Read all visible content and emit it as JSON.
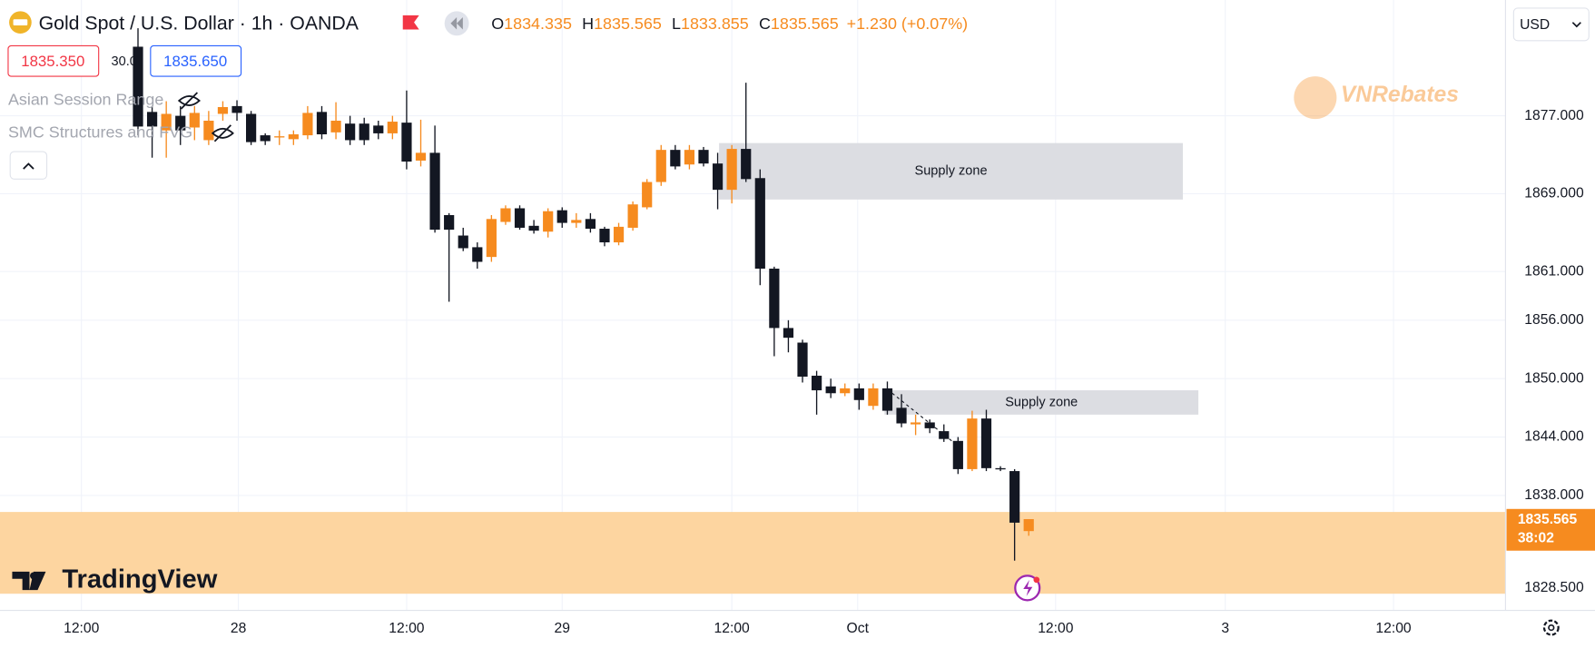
{
  "chart_data": {
    "type": "candlestick",
    "title": "Gold Spot / U.S. Dollar · 1h · OANDA",
    "legend_ohlc": [
      {
        "label": "O",
        "value": 1834.335
      },
      {
        "label": "H",
        "value": 1835.565
      },
      {
        "label": "L",
        "value": 1833.855
      },
      {
        "label": "C",
        "value": 1835.565
      }
    ],
    "change": "+1.230 (+0.07%)",
    "bid": "1835.350",
    "spread": "30.0",
    "ask": "1835.650",
    "indicators": [
      "Asian Session Range",
      "SMC Structures and FVG"
    ],
    "currency": "USD",
    "logo": "TradingView",
    "watermark": "VNRebates",
    "up_color": "#f68b1f",
    "down_color": "#131722",
    "grid": true,
    "x": [
      4,
      5,
      6,
      7,
      8,
      9,
      10,
      11,
      12,
      13,
      14,
      15,
      16,
      17,
      18,
      19,
      20,
      21,
      22,
      23,
      24,
      25,
      26,
      27,
      28,
      29,
      30,
      31,
      32,
      33,
      34,
      35,
      36,
      37,
      38,
      39,
      40,
      41,
      42,
      43,
      44,
      45,
      46,
      47,
      48,
      49,
      50,
      51,
      52,
      53,
      54,
      55,
      56,
      57,
      58,
      59,
      60,
      61,
      62,
      63,
      64,
      65,
      66,
      67
    ],
    "open": [
      1884.1,
      1877.4,
      1875.5,
      1877,
      1875.8,
      1874.5,
      1877.2,
      1878,
      1877.2,
      1875,
      1874.8,
      1874.6,
      1875,
      1877.4,
      1875.3,
      1876.2,
      1876.2,
      1876,
      1875.2,
      1876.3,
      1872.4,
      1873.2,
      1866.8,
      1864.7,
      1863.5,
      1862.5,
      1866.1,
      1867.5,
      1865.7,
      1865.1,
      1867.3,
      1866,
      1866.4,
      1865.4,
      1864,
      1865.5,
      1867.6,
      1870.2,
      1873.5,
      1872,
      1873.5,
      1872.1,
      1869.4,
      1873.6,
      1870.6,
      1861.3,
      1855.2,
      1853.7,
      1850.3,
      1849.2,
      1848.5,
      1849,
      1847.2,
      1849,
      1847,
      1845.3,
      1845.5,
      1844.6,
      1843.6,
      1840.7,
      1845.9,
      1840.8,
      1840.5,
      1834.335
    ],
    "high": [
      1886,
      1878,
      1878.5,
      1878,
      1878,
      1877.5,
      1878.5,
      1878.6,
      1877.5,
      1875.2,
      1875.5,
      1875.5,
      1878,
      1878,
      1878.4,
      1877,
      1876.8,
      1876.5,
      1877,
      1879.6,
      1876.6,
      1876,
      1867,
      1865.5,
      1864,
      1866.8,
      1867.8,
      1867.8,
      1866.3,
      1867.5,
      1867.6,
      1867,
      1867,
      1865.6,
      1866,
      1868.2,
      1870.5,
      1874,
      1874,
      1874,
      1873.8,
      1873.2,
      1874,
      1880.4,
      1871.5,
      1861.5,
      1856,
      1854,
      1850.8,
      1850,
      1849.5,
      1849.5,
      1849.5,
      1849.7,
      1848.4,
      1846.3,
      1845.8,
      1845.3,
      1844,
      1846.7,
      1846.8,
      1841,
      1840.7,
      1835.565
    ],
    "low": [
      1875,
      1872.7,
      1872.7,
      1874,
      1874.5,
      1874,
      1876.5,
      1876.5,
      1874,
      1874,
      1874,
      1874,
      1874.6,
      1874.6,
      1874.6,
      1874,
      1874,
      1874.6,
      1874.6,
      1871.5,
      1871.8,
      1865,
      1857.9,
      1863.1,
      1861.3,
      1862,
      1865.8,
      1865.3,
      1864.9,
      1864.5,
      1865.5,
      1865.5,
      1865,
      1863.6,
      1863.7,
      1865.2,
      1867.4,
      1869.8,
      1871.5,
      1871.5,
      1871.8,
      1867.4,
      1868,
      1870.2,
      1859.6,
      1852.3,
      1852.7,
      1849.6,
      1846.3,
      1848,
      1848.2,
      1846.8,
      1846.8,
      1846.3,
      1845,
      1844.2,
      1844.4,
      1843.5,
      1840.2,
      1840.5,
      1840.5,
      1840.5,
      1831.3,
      1833.855
    ],
    "close": [
      1875.9,
      1875.9,
      1877.2,
      1875.5,
      1877.3,
      1876.5,
      1877.9,
      1877.3,
      1874.3,
      1874.4,
      1874.9,
      1875.1,
      1877.3,
      1875.1,
      1876.5,
      1874.5,
      1874.5,
      1875.2,
      1876.4,
      1872.3,
      1873.2,
      1865.3,
      1865.3,
      1863.4,
      1862,
      1866.4,
      1867.5,
      1865.5,
      1865.2,
      1867.2,
      1866,
      1866.3,
      1865.4,
      1864,
      1865.6,
      1867.9,
      1870.2,
      1873.5,
      1871.8,
      1873.5,
      1872.1,
      1869.4,
      1873.6,
      1870.5,
      1861.3,
      1855.2,
      1854.2,
      1850.2,
      1848.8,
      1848.5,
      1849,
      1847.8,
      1849,
      1846.7,
      1845.4,
      1845.5,
      1844.9,
      1843.8,
      1840.7,
      1845.9,
      1840.8,
      1840.7,
      1835.2,
      1835.565
    ],
    "xlim": [
      -5.76,
      100.72
    ],
    "ylim": [
      1826.4,
      1888.9
    ],
    "xticks": [
      {
        "value": 0,
        "label": "12:00"
      },
      {
        "value": 11.1,
        "label": "28"
      },
      {
        "value": 23,
        "label": "12:00"
      },
      {
        "value": 34,
        "label": "29"
      },
      {
        "value": 46,
        "label": "12:00"
      },
      {
        "value": 54.9,
        "label": "Oct"
      },
      {
        "value": 68.9,
        "label": "12:00"
      },
      {
        "value": 80.9,
        "label": "3"
      },
      {
        "value": 92.8,
        "label": "12:00"
      }
    ],
    "yticks": [
      {
        "value": 1877,
        "label": "1877.000"
      },
      {
        "value": 1869,
        "label": "1869.000"
      },
      {
        "value": 1861,
        "label": "1861.000"
      },
      {
        "value": 1856,
        "label": "1856.000"
      },
      {
        "value": 1850,
        "label": "1850.000"
      },
      {
        "value": 1844,
        "label": "1844.000"
      },
      {
        "value": 1838,
        "label": "1838.000"
      },
      {
        "value": 1828.5,
        "label": "1828.500"
      }
    ],
    "zones": [
      {
        "label": "Supply zone",
        "x": [
          45.1,
          77.9
        ],
        "top": 1874.2,
        "bottom": 1868.4,
        "color": "#dcdde2"
      },
      {
        "label": "Supply zone",
        "x": [
          56.8,
          79.0
        ],
        "top": 1848.8,
        "bottom": 1846.3,
        "color": "#dcdde2"
      }
    ],
    "band": {
      "top": 1836.3,
      "bottom": 1827.9,
      "color": "#fdd5a0"
    },
    "trendline": {
      "x": [
        57,
        61.9
      ],
      "y": [
        1848.9,
        1843.2
      ]
    },
    "last_price": 1835.565,
    "countdown": "38:02"
  }
}
